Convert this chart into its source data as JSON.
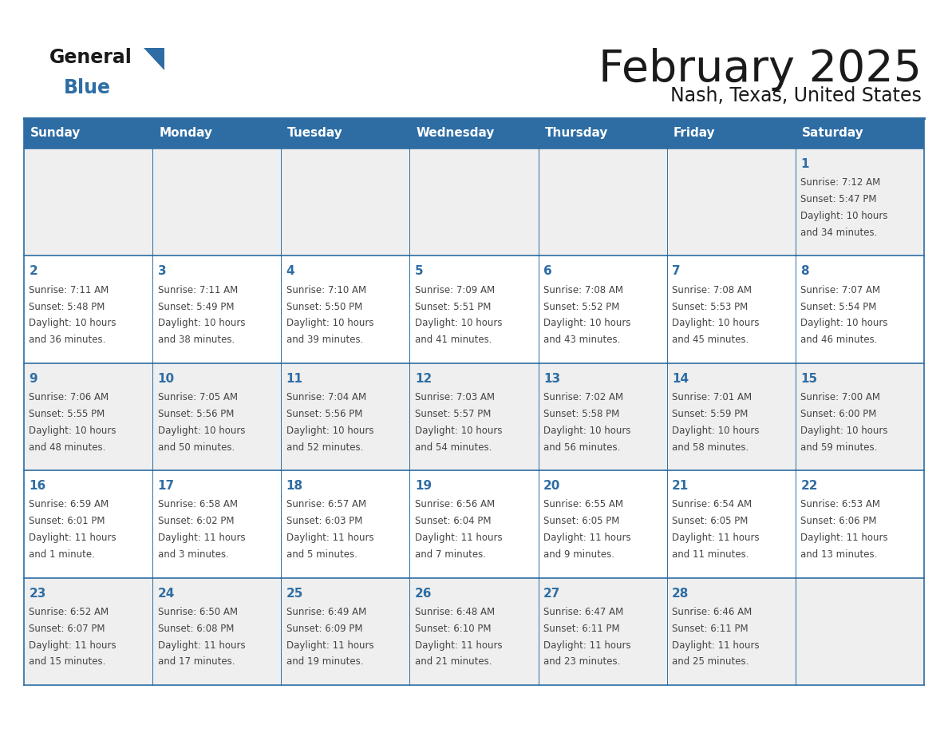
{
  "title": "February 2025",
  "subtitle": "Nash, Texas, United States",
  "header_color": "#2E6DA4",
  "header_text_color": "#FFFFFF",
  "cell_bg_white": "#FFFFFF",
  "cell_bg_gray": "#EFEFEF",
  "border_color": "#2E6DA4",
  "title_color": "#1a1a1a",
  "day_num_color": "#2E6DA4",
  "text_color": "#444444",
  "logo_black": "#1a1a1a",
  "logo_blue": "#2E6DA4",
  "days_of_week": [
    "Sunday",
    "Monday",
    "Tuesday",
    "Wednesday",
    "Thursday",
    "Friday",
    "Saturday"
  ],
  "calendar": [
    [
      null,
      null,
      null,
      null,
      null,
      null,
      1
    ],
    [
      2,
      3,
      4,
      5,
      6,
      7,
      8
    ],
    [
      9,
      10,
      11,
      12,
      13,
      14,
      15
    ],
    [
      16,
      17,
      18,
      19,
      20,
      21,
      22
    ],
    [
      23,
      24,
      25,
      26,
      27,
      28,
      null
    ]
  ],
  "cell_data": {
    "1": {
      "sunrise": "7:12 AM",
      "sunset": "5:47 PM",
      "daylight_l1": "Daylight: 10 hours",
      "daylight_l2": "and 34 minutes."
    },
    "2": {
      "sunrise": "7:11 AM",
      "sunset": "5:48 PM",
      "daylight_l1": "Daylight: 10 hours",
      "daylight_l2": "and 36 minutes."
    },
    "3": {
      "sunrise": "7:11 AM",
      "sunset": "5:49 PM",
      "daylight_l1": "Daylight: 10 hours",
      "daylight_l2": "and 38 minutes."
    },
    "4": {
      "sunrise": "7:10 AM",
      "sunset": "5:50 PM",
      "daylight_l1": "Daylight: 10 hours",
      "daylight_l2": "and 39 minutes."
    },
    "5": {
      "sunrise": "7:09 AM",
      "sunset": "5:51 PM",
      "daylight_l1": "Daylight: 10 hours",
      "daylight_l2": "and 41 minutes."
    },
    "6": {
      "sunrise": "7:08 AM",
      "sunset": "5:52 PM",
      "daylight_l1": "Daylight: 10 hours",
      "daylight_l2": "and 43 minutes."
    },
    "7": {
      "sunrise": "7:08 AM",
      "sunset": "5:53 PM",
      "daylight_l1": "Daylight: 10 hours",
      "daylight_l2": "and 45 minutes."
    },
    "8": {
      "sunrise": "7:07 AM",
      "sunset": "5:54 PM",
      "daylight_l1": "Daylight: 10 hours",
      "daylight_l2": "and 46 minutes."
    },
    "9": {
      "sunrise": "7:06 AM",
      "sunset": "5:55 PM",
      "daylight_l1": "Daylight: 10 hours",
      "daylight_l2": "and 48 minutes."
    },
    "10": {
      "sunrise": "7:05 AM",
      "sunset": "5:56 PM",
      "daylight_l1": "Daylight: 10 hours",
      "daylight_l2": "and 50 minutes."
    },
    "11": {
      "sunrise": "7:04 AM",
      "sunset": "5:56 PM",
      "daylight_l1": "Daylight: 10 hours",
      "daylight_l2": "and 52 minutes."
    },
    "12": {
      "sunrise": "7:03 AM",
      "sunset": "5:57 PM",
      "daylight_l1": "Daylight: 10 hours",
      "daylight_l2": "and 54 minutes."
    },
    "13": {
      "sunrise": "7:02 AM",
      "sunset": "5:58 PM",
      "daylight_l1": "Daylight: 10 hours",
      "daylight_l2": "and 56 minutes."
    },
    "14": {
      "sunrise": "7:01 AM",
      "sunset": "5:59 PM",
      "daylight_l1": "Daylight: 10 hours",
      "daylight_l2": "and 58 minutes."
    },
    "15": {
      "sunrise": "7:00 AM",
      "sunset": "6:00 PM",
      "daylight_l1": "Daylight: 10 hours",
      "daylight_l2": "and 59 minutes."
    },
    "16": {
      "sunrise": "6:59 AM",
      "sunset": "6:01 PM",
      "daylight_l1": "Daylight: 11 hours",
      "daylight_l2": "and 1 minute."
    },
    "17": {
      "sunrise": "6:58 AM",
      "sunset": "6:02 PM",
      "daylight_l1": "Daylight: 11 hours",
      "daylight_l2": "and 3 minutes."
    },
    "18": {
      "sunrise": "6:57 AM",
      "sunset": "6:03 PM",
      "daylight_l1": "Daylight: 11 hours",
      "daylight_l2": "and 5 minutes."
    },
    "19": {
      "sunrise": "6:56 AM",
      "sunset": "6:04 PM",
      "daylight_l1": "Daylight: 11 hours",
      "daylight_l2": "and 7 minutes."
    },
    "20": {
      "sunrise": "6:55 AM",
      "sunset": "6:05 PM",
      "daylight_l1": "Daylight: 11 hours",
      "daylight_l2": "and 9 minutes."
    },
    "21": {
      "sunrise": "6:54 AM",
      "sunset": "6:05 PM",
      "daylight_l1": "Daylight: 11 hours",
      "daylight_l2": "and 11 minutes."
    },
    "22": {
      "sunrise": "6:53 AM",
      "sunset": "6:06 PM",
      "daylight_l1": "Daylight: 11 hours",
      "daylight_l2": "and 13 minutes."
    },
    "23": {
      "sunrise": "6:52 AM",
      "sunset": "6:07 PM",
      "daylight_l1": "Daylight: 11 hours",
      "daylight_l2": "and 15 minutes."
    },
    "24": {
      "sunrise": "6:50 AM",
      "sunset": "6:08 PM",
      "daylight_l1": "Daylight: 11 hours",
      "daylight_l2": "and 17 minutes."
    },
    "25": {
      "sunrise": "6:49 AM",
      "sunset": "6:09 PM",
      "daylight_l1": "Daylight: 11 hours",
      "daylight_l2": "and 19 minutes."
    },
    "26": {
      "sunrise": "6:48 AM",
      "sunset": "6:10 PM",
      "daylight_l1": "Daylight: 11 hours",
      "daylight_l2": "and 21 minutes."
    },
    "27": {
      "sunrise": "6:47 AM",
      "sunset": "6:11 PM",
      "daylight_l1": "Daylight: 11 hours",
      "daylight_l2": "and 23 minutes."
    },
    "28": {
      "sunrise": "6:46 AM",
      "sunset": "6:11 PM",
      "daylight_l1": "Daylight: 11 hours",
      "daylight_l2": "and 25 minutes."
    }
  }
}
